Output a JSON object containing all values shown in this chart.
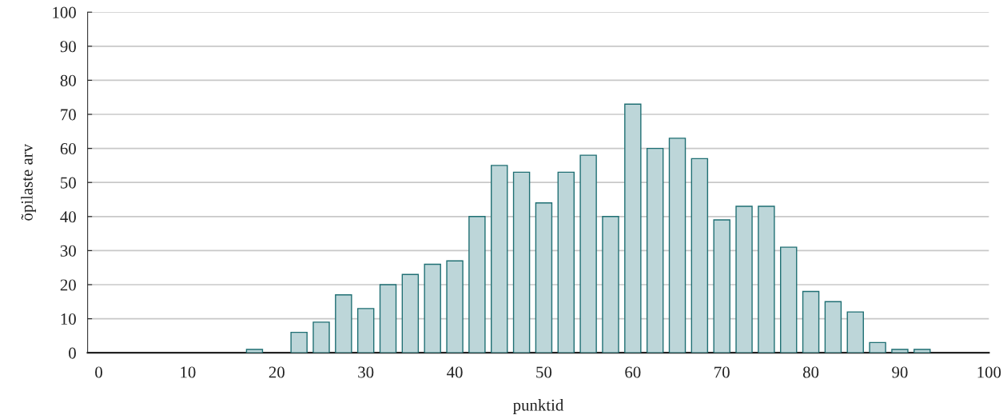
{
  "chart_data": {
    "type": "bar",
    "xlabel": "punktid",
    "ylabel": "õpilaste arv",
    "x": [
      0,
      2.5,
      5,
      7.5,
      10,
      12.5,
      15,
      17.5,
      20,
      22.5,
      25,
      27.5,
      30,
      32.5,
      35,
      37.5,
      40,
      42.5,
      45,
      47.5,
      50,
      52.5,
      55,
      57.5,
      60,
      62.5,
      65,
      67.5,
      70,
      72.5,
      75,
      77.5,
      80,
      82.5,
      85,
      87.5,
      90,
      92.5,
      95,
      97.5
    ],
    "values": [
      0,
      0,
      0,
      0,
      0,
      0,
      0,
      1,
      0,
      6,
      9,
      17,
      13,
      20,
      23,
      26,
      27,
      40,
      55,
      53,
      44,
      53,
      58,
      40,
      73,
      60,
      63,
      57,
      39,
      43,
      43,
      31,
      18,
      15,
      12,
      3,
      1,
      1,
      0,
      0
    ],
    "color": "#bdd6d9",
    "xlim": [
      -1.25,
      100
    ],
    "xticks": [
      0,
      10,
      20,
      30,
      40,
      50,
      60,
      70,
      80,
      90,
      100
    ],
    "ylim": [
      0,
      100
    ],
    "yticks": [
      0,
      10,
      20,
      30,
      40,
      50,
      60,
      70,
      80,
      90,
      100
    ],
    "grid": "y"
  }
}
